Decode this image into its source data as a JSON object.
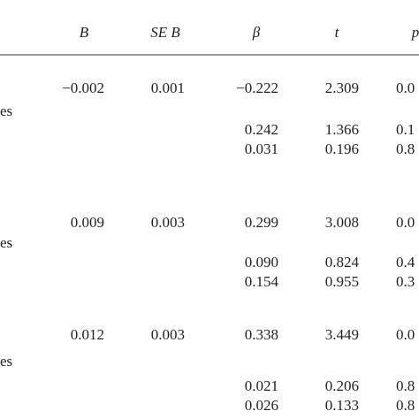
{
  "table": {
    "header": {
      "b": "B",
      "se_b": "SE B",
      "beta": "β",
      "t": "t",
      "p": "p"
    },
    "rows": [
      {
        "b": "−0.002",
        "se_b": "0.001",
        "beta": "−0.222",
        "t": "2.309",
        "p": "0.0"
      },
      {
        "label": "es"
      },
      {
        "beta": "0.242",
        "t": "1.366",
        "p": "0.1"
      },
      {
        "beta": "0.031",
        "t": "0.196",
        "p": "0.8"
      },
      {
        "b": "0.009",
        "se_b": "0.003",
        "beta": "0.299",
        "t": "3.008",
        "p": "0.0"
      },
      {
        "label": "es"
      },
      {
        "beta": "0.090",
        "t": "0.824",
        "p": "0.4"
      },
      {
        "beta": "0.154",
        "t": "0.955",
        "p": "0.3"
      },
      {
        "b": "0.012",
        "se_b": "0.003",
        "beta": "0.338",
        "t": "3.449",
        "p": "0.0"
      },
      {
        "label": "es"
      },
      {
        "beta": "0.021",
        "t": "0.206",
        "p": "0.8"
      },
      {
        "beta": "0.026",
        "t": "0.133",
        "p": "0.8"
      }
    ]
  }
}
